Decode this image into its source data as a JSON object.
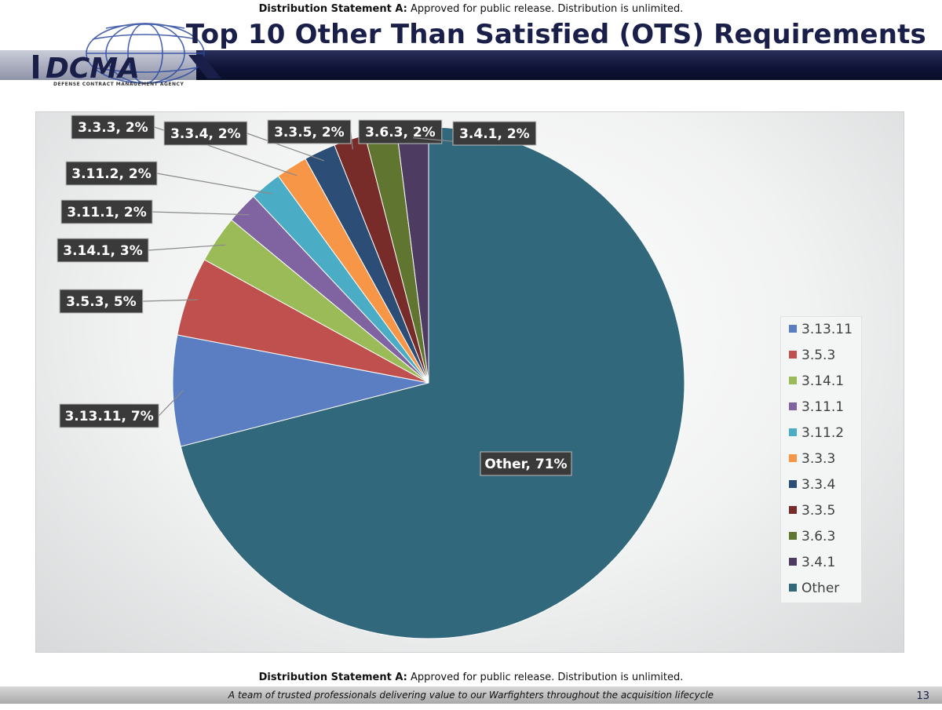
{
  "header": {
    "distribution_bold": "Distribution Statement A:",
    "distribution_text": " Approved for public release. Distribution is unlimited.",
    "title": "Top 10 Other Than Satisfied (OTS) Requirements",
    "logo_text": "DCMA",
    "logo_tagline": "DEFENSE CONTRACT MANAGEMENT AGENCY"
  },
  "footer": {
    "distribution_bold": "Distribution Statement A:",
    "distribution_text": " Approved for public release. Distribution is unlimited.",
    "tagline": "A team of trusted professionals delivering value to our Warfighters throughout the acquisition lifecycle",
    "page_number": "13"
  },
  "chart_data": {
    "type": "pie",
    "categories": [
      "3.13.11",
      "3.5.3",
      "3.14.1",
      "3.11.1",
      "3.11.2",
      "3.3.3",
      "3.3.4",
      "3.3.5",
      "3.6.3",
      "3.4.1",
      "Other"
    ],
    "values": [
      7,
      5,
      3,
      2,
      2,
      2,
      2,
      2,
      2,
      2,
      71
    ],
    "data_labels": [
      "3.13.11, 7%",
      "3.5.3, 5%",
      "3.14.1, 3%",
      "3.11.1, 2%",
      "3.11.2, 2%",
      "3.3.3, 2%",
      "3.3.4, 2%",
      "3.3.5, 2%",
      "3.6.3, 2%",
      "3.4.1, 2%",
      "Other, 71%"
    ],
    "colors": [
      "#5b7ec2",
      "#c0504d",
      "#9bbb59",
      "#8064a2",
      "#4bacc6",
      "#f79646",
      "#2c4d75",
      "#772c2a",
      "#5f7530",
      "#4d3b62",
      "#31687b"
    ],
    "legend_position": "right",
    "value_unit": "%"
  }
}
